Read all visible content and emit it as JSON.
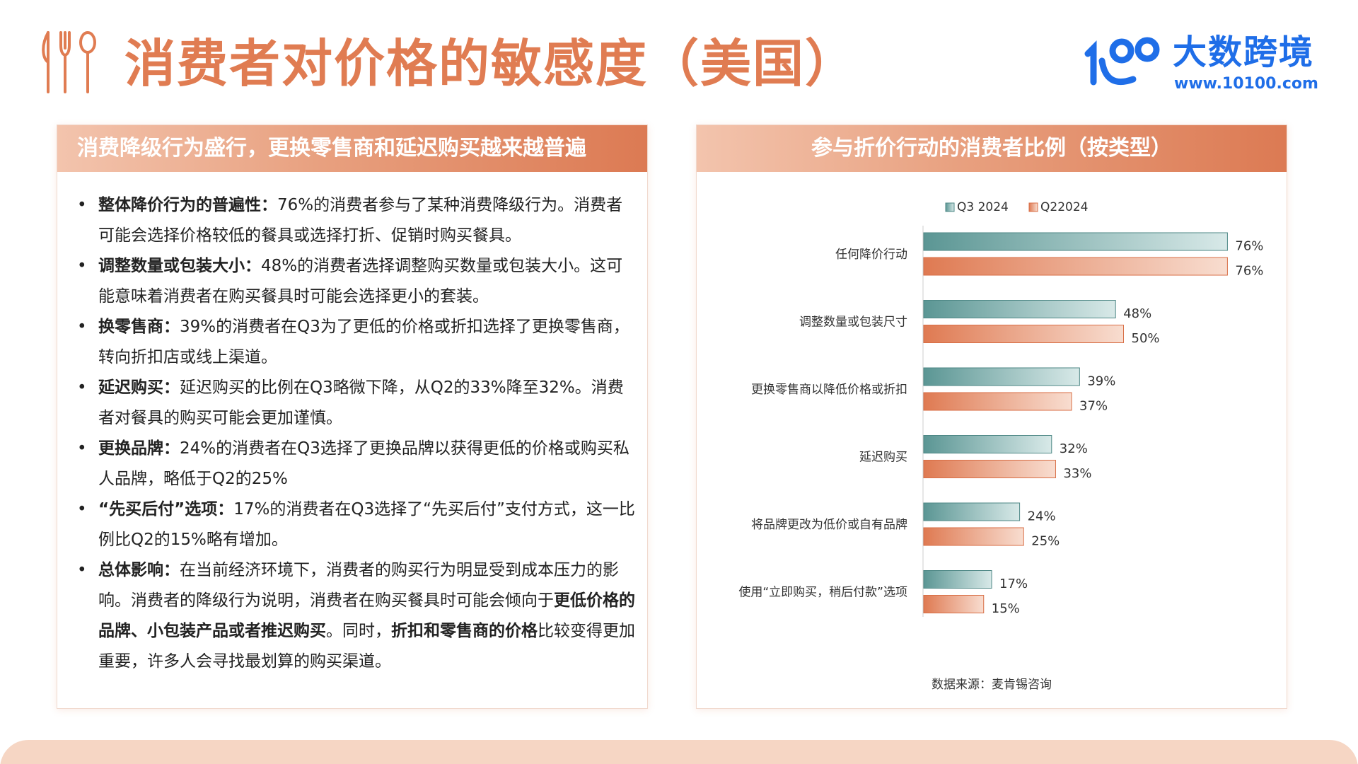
{
  "title": "消费者对价格的敏感度（美国）",
  "logo": {
    "name": "大数跨境",
    "url": "www.10100.com",
    "accent": "#1f6ee8"
  },
  "colors": {
    "accent": "#e07c52",
    "q3": "#5b9694",
    "q2": "#df7a52"
  },
  "left_panel": {
    "header": "消费降级行为盛行，更换零售商和延迟购买越来越普遍",
    "bullets": [
      {
        "label": "整体降价行为的普遍性：",
        "text": "76%的消费者参与了某种消费降级行为。消费者可能会选择价格较低的餐具或选择打折、促销时购买餐具。"
      },
      {
        "label": "调整数量或包装大小：",
        "text": "48%的消费者选择调整购买数量或包装大小。这可能意味着消费者在购买餐具时可能会选择更小的套装。"
      },
      {
        "label": "换零售商：",
        "text": "39%的消费者在Q3为了更低的价格或折扣选择了更换零售商，转向折扣店或线上渠道。"
      },
      {
        "label": "延迟购买：",
        "text": "延迟购买的比例在Q3略微下降，从Q2的33%降至32%。消费者对餐具的购买可能会更加谨慎。"
      },
      {
        "label": "更换品牌：",
        "text": "24%的消费者在Q3选择了更换品牌以获得更低的价格或购买私人品牌，略低于Q2的25%"
      },
      {
        "label": "“先买后付”选项：",
        "text": "17%的消费者在Q3选择了“先买后付”支付方式，这一比例比Q2的15%略有增加。"
      },
      {
        "label": "总体影响：",
        "text_1": "在当前经济环境下，消费者的购买行为明显受到成本压力的影响。消费者的降级行为说明，消费者在购买餐具时可能会倾向于",
        "bold_1": "更低价格的品牌、小包装产品或者推迟购买",
        "text_2": "。同时，",
        "bold_2": "折扣和零售商的价格",
        "text_3": "比较变得更加重要，许多人会寻找最划算的购买渠道。"
      }
    ]
  },
  "right_panel": {
    "header": "参与折价行动的消费者比例（按类型）",
    "source": "数据来源：麦肯锡咨询"
  },
  "chart_data": {
    "type": "bar",
    "orientation": "horizontal",
    "categories": [
      "任何降价行动",
      "调整数量或包装尺寸",
      "更换零售商以降低价格或折扣",
      "延迟购买",
      "将品牌更改为低价或自有品牌",
      "使用“立即购买，稍后付款”选项"
    ],
    "series": [
      {
        "name": "Q3 2024",
        "values": [
          76,
          48,
          39,
          32,
          24,
          17
        ],
        "labels": [
          "76%",
          "48%",
          "39%",
          "32%",
          "24%",
          "17%"
        ]
      },
      {
        "name": "Q22024",
        "values": [
          76,
          50,
          37,
          33,
          25,
          15
        ],
        "labels": [
          "76%",
          "50%",
          "37%",
          "33%",
          "25%",
          "15%"
        ]
      }
    ],
    "unit": "%",
    "xlim": [
      0,
      100
    ],
    "legend": "top",
    "grid": false
  }
}
